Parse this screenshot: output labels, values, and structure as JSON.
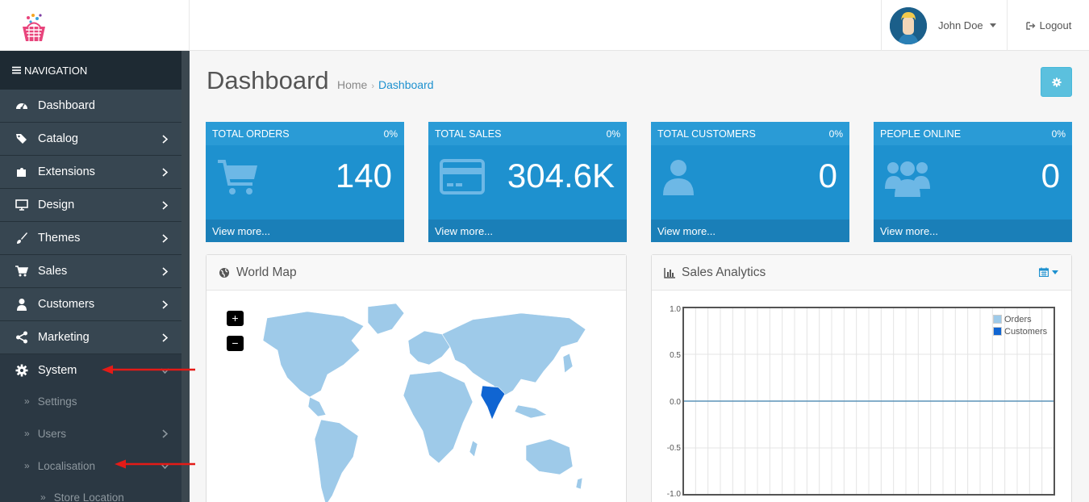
{
  "header": {
    "user_name": "John Doe",
    "logout_label": "Logout"
  },
  "sidebar": {
    "heading": "NAVIGATION",
    "items": [
      {
        "label": "Dashboard",
        "icon": "dashboard-icon"
      },
      {
        "label": "Catalog",
        "icon": "tags-icon"
      },
      {
        "label": "Extensions",
        "icon": "puzzle-icon"
      },
      {
        "label": "Design",
        "icon": "monitor-icon"
      },
      {
        "label": "Themes",
        "icon": "brush-icon"
      },
      {
        "label": "Sales",
        "icon": "cart-icon"
      },
      {
        "label": "Customers",
        "icon": "user-icon"
      },
      {
        "label": "Marketing",
        "icon": "share-icon"
      },
      {
        "label": "System",
        "icon": "gear-icon"
      }
    ],
    "sub_items": [
      {
        "label": "Settings"
      },
      {
        "label": "Users"
      },
      {
        "label": "Localisation"
      },
      {
        "label": "Store Location"
      }
    ]
  },
  "page": {
    "title": "Dashboard",
    "breadcrumb": [
      "Home",
      "Dashboard"
    ]
  },
  "tiles": [
    {
      "title": "TOTAL ORDERS",
      "pct": "0%",
      "value": "140",
      "footer": "View more...",
      "icon": "cart-icon"
    },
    {
      "title": "TOTAL SALES",
      "pct": "0%",
      "value": "304.6K",
      "footer": "View more...",
      "icon": "credit-card-icon"
    },
    {
      "title": "TOTAL CUSTOMERS",
      "pct": "0%",
      "value": "0",
      "footer": "View more...",
      "icon": "user-icon"
    },
    {
      "title": "PEOPLE ONLINE",
      "pct": "0%",
      "value": "0",
      "footer": "View more...",
      "icon": "users-icon"
    }
  ],
  "map_panel": {
    "title": "World Map",
    "zoom_in": "+",
    "zoom_out": "−",
    "highlighted_country": "India"
  },
  "sales_panel": {
    "title": "Sales Analytics"
  },
  "chart_data": {
    "type": "line",
    "ylim": [
      -1.0,
      1.0
    ],
    "yticks": [
      "1.0",
      "0.5",
      "0.0",
      "-0.5",
      "-1.0"
    ],
    "series": [
      {
        "name": "Orders",
        "color": "#9ecae9",
        "values": []
      },
      {
        "name": "Customers",
        "color": "#1065d2",
        "values": []
      }
    ],
    "legend": "top-right",
    "grid": true
  },
  "colors": {
    "primary": "#1e91cf",
    "sidebar": "#2f3b44",
    "info": "#5bc0de",
    "map_land": "#9ecae9",
    "map_highlight": "#1065d2"
  }
}
